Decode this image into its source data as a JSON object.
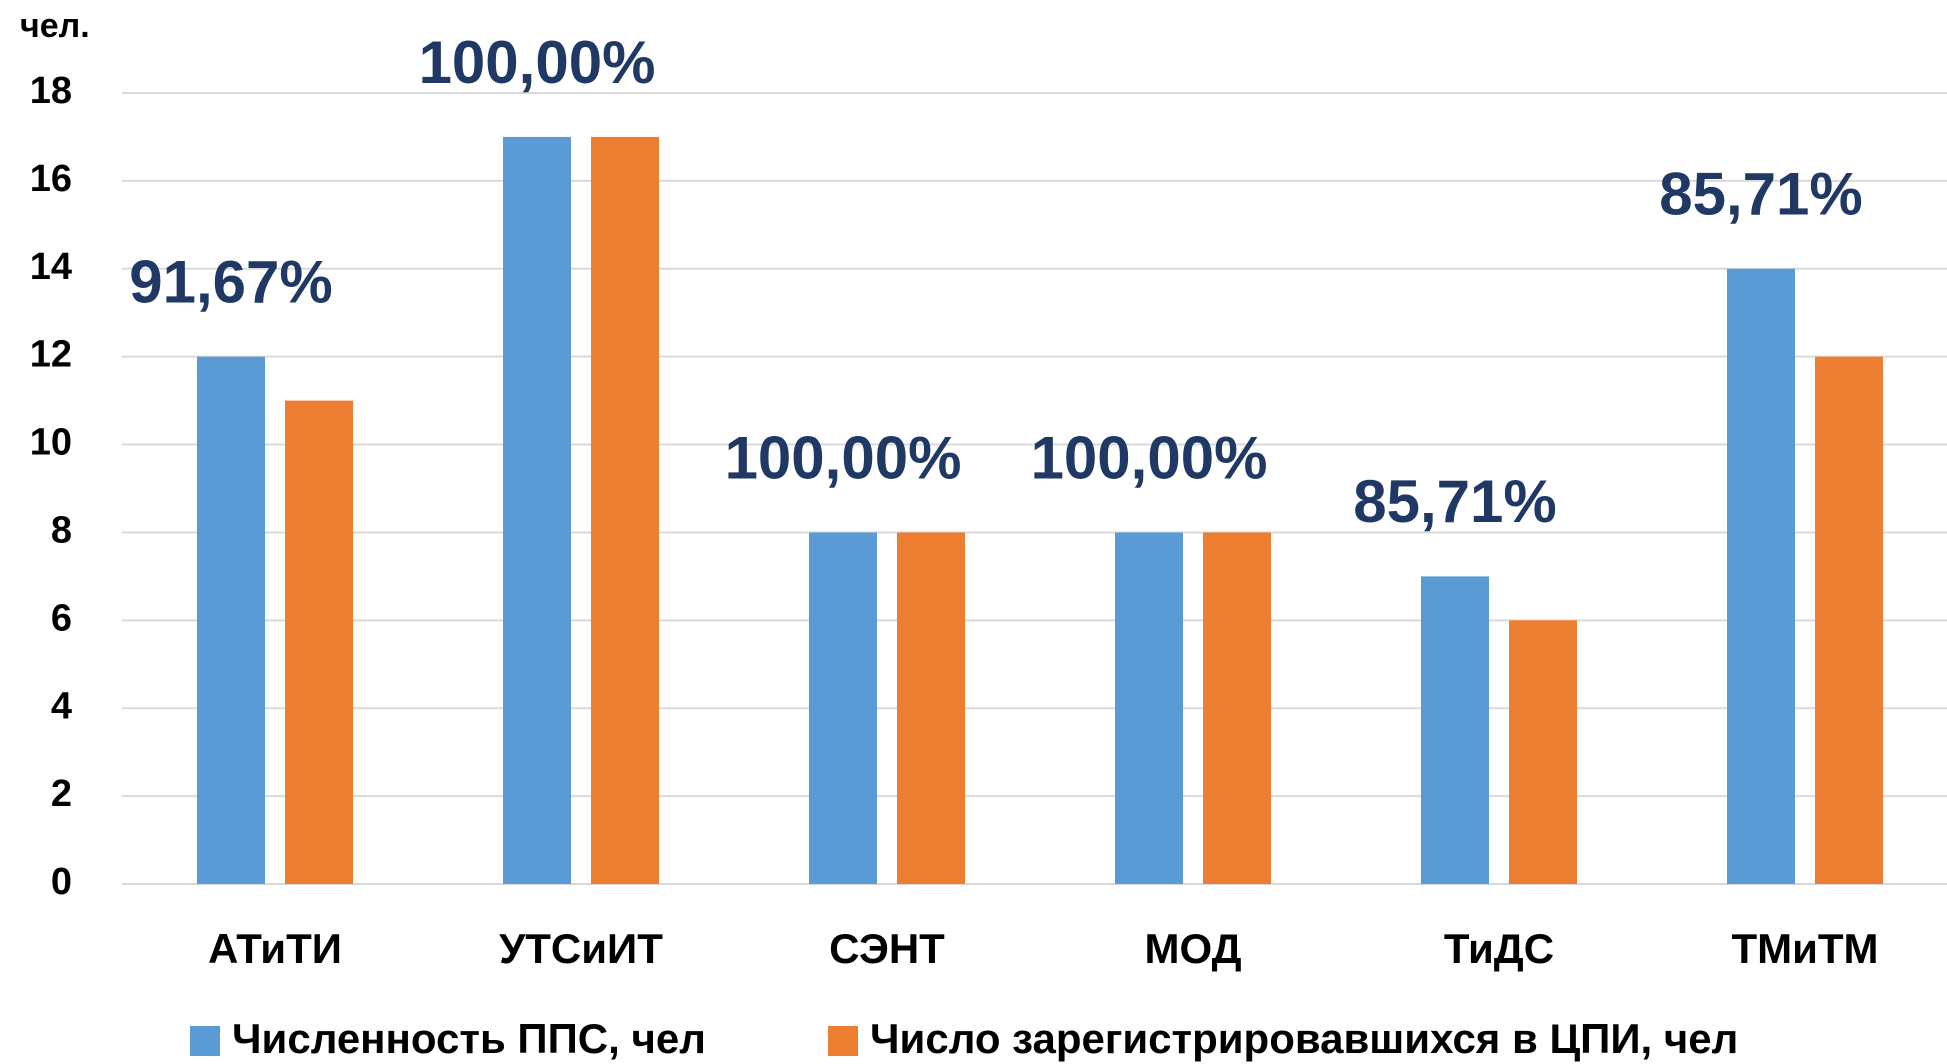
{
  "chart_data": {
    "type": "bar",
    "y_label": "чел.",
    "categories": [
      "АТиТИ",
      "УТСиИТ",
      "СЭНТ",
      "МОД",
      "ТиДС",
      "ТМиТМ"
    ],
    "series": [
      {
        "name": "Численность ППС, чел",
        "color": "#5b9bd5",
        "values": [
          12,
          17,
          8,
          8,
          7,
          14
        ]
      },
      {
        "name": "Число зарегистрировавшихся в ЦПИ, чел",
        "color": "#ed7d31",
        "values": [
          11,
          17,
          8,
          8,
          6,
          12
        ]
      }
    ],
    "annotations": [
      "91,67%",
      "100,00%",
      "100,00%",
      "100,00%",
      "85,71%",
      "85,71%"
    ],
    "annotation_color": "#1f3864",
    "ylim": [
      0,
      18
    ],
    "yticks": [
      0,
      2,
      4,
      6,
      8,
      10,
      12,
      14,
      16,
      18
    ],
    "grid": true,
    "legend": "bottom"
  }
}
